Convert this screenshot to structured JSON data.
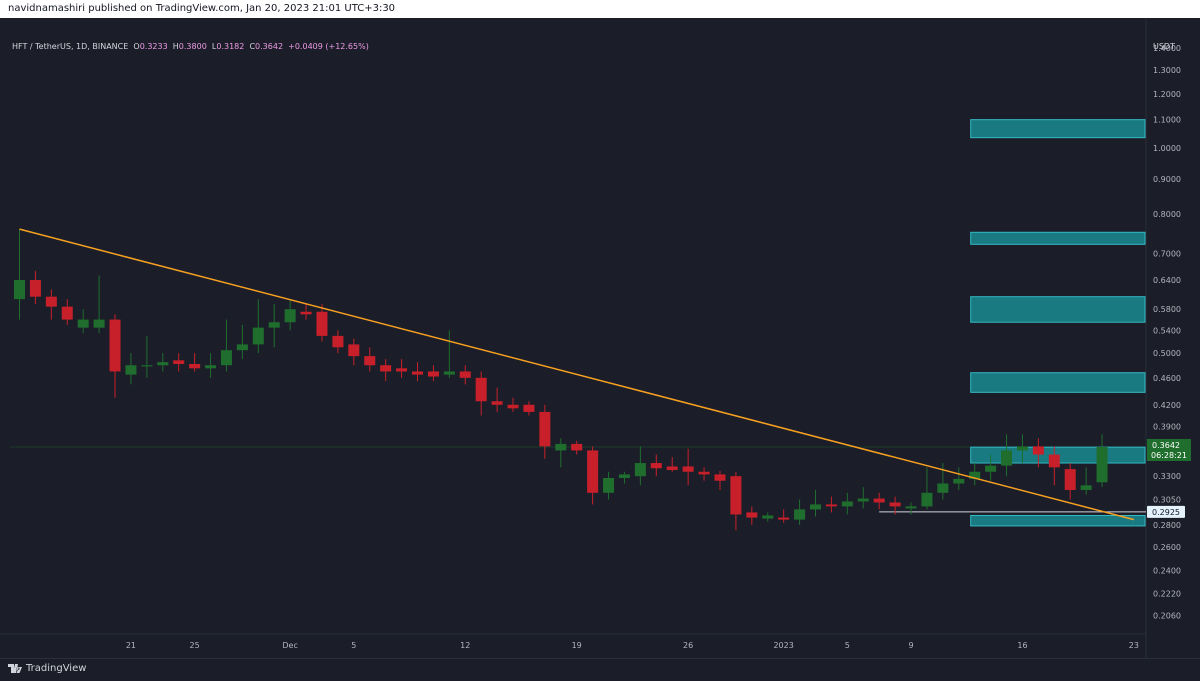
{
  "header": {
    "publisher_text": "navidnamashiri published on TradingView.com, Jan 20, 2023 21:01 UTC+3:30"
  },
  "legend": {
    "symbol": "HFT / TetherUS, 1D, BINANCE",
    "open_label": "O",
    "open": "0.3233",
    "high_label": "H",
    "high": "0.3800",
    "low_label": "L",
    "low": "0.3182",
    "close_label": "C",
    "close": "0.3642",
    "change": "+0.0409 (+12.65%)"
  },
  "price_axis": {
    "currency": "USDT"
  },
  "footer": {
    "brand": "TradingView"
  },
  "colors": {
    "background": "#1b1e28",
    "up": "#1f6e2e",
    "down": "#c8202a",
    "trendline": "#f7a021",
    "zone_fill": "#1a7a82",
    "zone_border": "#33b9c4",
    "axis_text": "#b2b5be",
    "grid": "#23262f"
  },
  "chart_data": {
    "type": "candlestick",
    "y_scale": "log",
    "y_range": [
      0.195,
      1.54
    ],
    "y_ticks": [
      "1.4000",
      "1.3000",
      "1.2000",
      "1.1000",
      "1.0000",
      "0.9000",
      "0.8000",
      "0.7000",
      "0.6400",
      "0.5800",
      "0.5400",
      "0.5000",
      "0.4600",
      "0.4200",
      "0.3900",
      "0.3300",
      "0.3050",
      "0.2800",
      "0.2600",
      "0.2400",
      "0.2220",
      "0.2060"
    ],
    "x_ticks": [
      "21",
      "25",
      "Dec",
      "5",
      "12",
      "19",
      "26",
      "2023",
      "5",
      "9",
      "16",
      "23"
    ],
    "dates": [
      "2022-11-14",
      "2022-11-15",
      "2022-11-16",
      "2022-11-17",
      "2022-11-18",
      "2022-11-19",
      "2022-11-20",
      "2022-11-21",
      "2022-11-22",
      "2022-11-23",
      "2022-11-24",
      "2022-11-25",
      "2022-11-26",
      "2022-11-27",
      "2022-11-28",
      "2022-11-29",
      "2022-11-30",
      "2022-12-01",
      "2022-12-02",
      "2022-12-03",
      "2022-12-04",
      "2022-12-05",
      "2022-12-06",
      "2022-12-07",
      "2022-12-08",
      "2022-12-09",
      "2022-12-10",
      "2022-12-11",
      "2022-12-12",
      "2022-12-13",
      "2022-12-14",
      "2022-12-15",
      "2022-12-16",
      "2022-12-17",
      "2022-12-18",
      "2022-12-19",
      "2022-12-20",
      "2022-12-21",
      "2022-12-22",
      "2022-12-23",
      "2022-12-24",
      "2022-12-25",
      "2022-12-26",
      "2022-12-27",
      "2022-12-28",
      "2022-12-29",
      "2022-12-30",
      "2022-12-31",
      "2023-01-01",
      "2023-01-02",
      "2023-01-03",
      "2023-01-04",
      "2023-01-05",
      "2023-01-06",
      "2023-01-07",
      "2023-01-08",
      "2023-01-09",
      "2023-01-10",
      "2023-01-11",
      "2023-01-12",
      "2023-01-13",
      "2023-01-14",
      "2023-01-15",
      "2023-01-16",
      "2023-01-17",
      "2023-01-18",
      "2023-01-19",
      "2023-01-20"
    ],
    "candles": [
      [
        0.6,
        0.76,
        0.56,
        0.64
      ],
      [
        0.64,
        0.66,
        0.59,
        0.605
      ],
      [
        0.605,
        0.62,
        0.56,
        0.585
      ],
      [
        0.585,
        0.6,
        0.55,
        0.56
      ],
      [
        0.545,
        0.58,
        0.535,
        0.56
      ],
      [
        0.545,
        0.65,
        0.535,
        0.56
      ],
      [
        0.56,
        0.57,
        0.43,
        0.47
      ],
      [
        0.465,
        0.5,
        0.45,
        0.48
      ],
      [
        0.48,
        0.53,
        0.46,
        0.48
      ],
      [
        0.48,
        0.5,
        0.47,
        0.485
      ],
      [
        0.488,
        0.5,
        0.47,
        0.482
      ],
      [
        0.482,
        0.5,
        0.47,
        0.475
      ],
      [
        0.475,
        0.5,
        0.46,
        0.48
      ],
      [
        0.48,
        0.56,
        0.47,
        0.505
      ],
      [
        0.505,
        0.55,
        0.49,
        0.515
      ],
      [
        0.515,
        0.6,
        0.5,
        0.545
      ],
      [
        0.545,
        0.59,
        0.51,
        0.555
      ],
      [
        0.555,
        0.6,
        0.54,
        0.58
      ],
      [
        0.575,
        0.59,
        0.56,
        0.57
      ],
      [
        0.575,
        0.59,
        0.52,
        0.53
      ],
      [
        0.53,
        0.54,
        0.5,
        0.51
      ],
      [
        0.515,
        0.525,
        0.48,
        0.495
      ],
      [
        0.495,
        0.51,
        0.47,
        0.48
      ],
      [
        0.48,
        0.49,
        0.455,
        0.47
      ],
      [
        0.475,
        0.49,
        0.46,
        0.47
      ],
      [
        0.47,
        0.485,
        0.455,
        0.465
      ],
      [
        0.47,
        0.48,
        0.455,
        0.462
      ],
      [
        0.465,
        0.54,
        0.46,
        0.47
      ],
      [
        0.47,
        0.48,
        0.45,
        0.46
      ],
      [
        0.46,
        0.47,
        0.405,
        0.425
      ],
      [
        0.425,
        0.445,
        0.41,
        0.42
      ],
      [
        0.42,
        0.43,
        0.41,
        0.415
      ],
      [
        0.42,
        0.425,
        0.405,
        0.41
      ],
      [
        0.41,
        0.42,
        0.35,
        0.365
      ],
      [
        0.36,
        0.375,
        0.34,
        0.368
      ],
      [
        0.368,
        0.372,
        0.355,
        0.36
      ],
      [
        0.36,
        0.365,
        0.3,
        0.312
      ],
      [
        0.312,
        0.335,
        0.305,
        0.328
      ],
      [
        0.328,
        0.335,
        0.322,
        0.332
      ],
      [
        0.33,
        0.365,
        0.32,
        0.345
      ],
      [
        0.345,
        0.355,
        0.33,
        0.339
      ],
      [
        0.341,
        0.352,
        0.335,
        0.337
      ],
      [
        0.341,
        0.362,
        0.32,
        0.335
      ],
      [
        0.335,
        0.34,
        0.325,
        0.332
      ],
      [
        0.332,
        0.336,
        0.315,
        0.325
      ],
      [
        0.33,
        0.335,
        0.275,
        0.29
      ],
      [
        0.292,
        0.298,
        0.28,
        0.287
      ],
      [
        0.286,
        0.292,
        0.283,
        0.289
      ],
      [
        0.287,
        0.295,
        0.282,
        0.285
      ],
      [
        0.285,
        0.305,
        0.28,
        0.295
      ],
      [
        0.295,
        0.315,
        0.288,
        0.3
      ],
      [
        0.3,
        0.308,
        0.292,
        0.298
      ],
      [
        0.298,
        0.312,
        0.29,
        0.303
      ],
      [
        0.303,
        0.318,
        0.296,
        0.306
      ],
      [
        0.306,
        0.312,
        0.295,
        0.302
      ],
      [
        0.302,
        0.308,
        0.29,
        0.298
      ],
      [
        0.296,
        0.302,
        0.29,
        0.298
      ],
      [
        0.298,
        0.34,
        0.295,
        0.312
      ],
      [
        0.312,
        0.345,
        0.305,
        0.322
      ],
      [
        0.322,
        0.34,
        0.315,
        0.327
      ],
      [
        0.327,
        0.345,
        0.32,
        0.335
      ],
      [
        0.335,
        0.355,
        0.325,
        0.342
      ],
      [
        0.342,
        0.38,
        0.33,
        0.36
      ],
      [
        0.36,
        0.38,
        0.345,
        0.365
      ],
      [
        0.365,
        0.375,
        0.34,
        0.355
      ],
      [
        0.355,
        0.365,
        0.32,
        0.34
      ],
      [
        0.338,
        0.345,
        0.305,
        0.315
      ],
      [
        0.315,
        0.34,
        0.31,
        0.32
      ],
      [
        0.3233,
        0.38,
        0.3182,
        0.3642
      ]
    ],
    "trendline": [
      [
        "2022-11-14",
        0.76
      ],
      [
        "2023-01-23",
        0.285
      ]
    ],
    "zones": [
      {
        "from": "2023-01-13",
        "low": 1.035,
        "high": 1.1
      },
      {
        "from": "2023-01-13",
        "low": 0.722,
        "high": 0.752
      },
      {
        "from": "2023-01-13",
        "low": 0.555,
        "high": 0.605
      },
      {
        "from": "2023-01-13",
        "low": 0.438,
        "high": 0.468
      },
      {
        "from": "2023-01-13",
        "low": 0.345,
        "high": 0.364
      },
      {
        "from": "2023-01-13",
        "low": 0.279,
        "high": 0.289
      }
    ],
    "horizontal_line": {
      "from": "2023-01-07",
      "value": 0.2925
    },
    "last_price": {
      "value": "0.3642",
      "countdown": "06:28:21"
    },
    "marker_price": {
      "value": "0.2925"
    },
    "current_price_line": 0.3642
  }
}
